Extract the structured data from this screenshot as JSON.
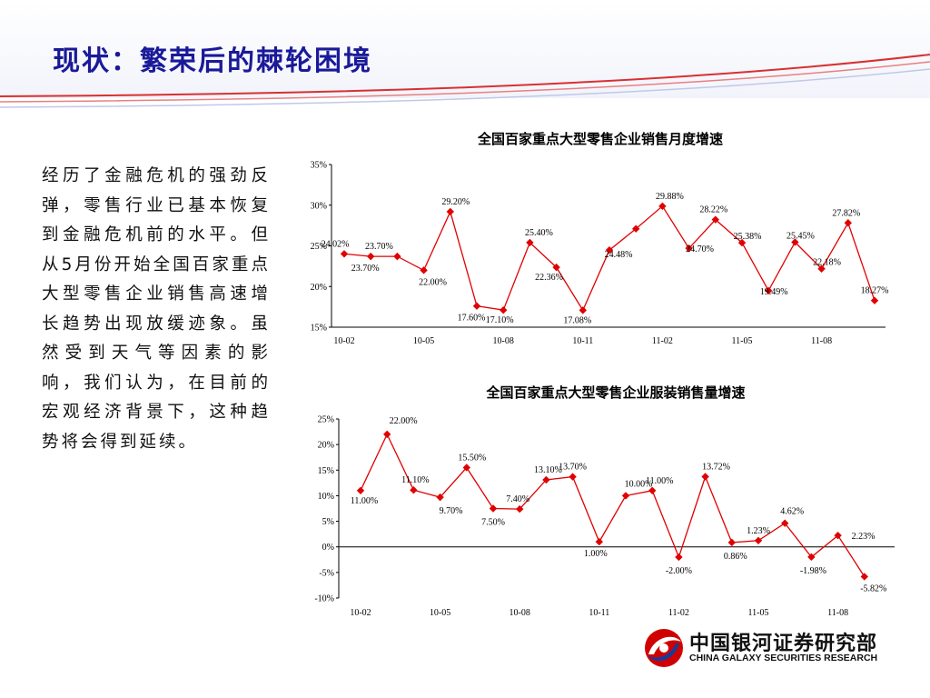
{
  "slide": {
    "title": "现状：繁荣后的棘轮困境",
    "body_text": "经历了金融危机的强劲反弹，零售行业已基本恢复到金融危机前的水平。但从5月份开始全国百家重点大型零售企业销售高速增长趋势出现放缓迹象。虽然受到天气等因素的影响，我们认为，在目前的宏观经济背景下，这种趋势将会得到延续。"
  },
  "logo": {
    "name_cn": "中国银河证券研究部",
    "name_en": "CHINA GALAXY SECURITIES RESEARCH"
  },
  "colors": {
    "series": "#e00000",
    "title": "#1a1a99",
    "header_arc": "#d93030"
  },
  "chart_data": [
    {
      "type": "line",
      "title": "全国百家重点大型零售企业销售月度增速",
      "ylim": [
        15,
        35
      ],
      "yticks": [
        15,
        20,
        25,
        30,
        35
      ],
      "ytick_labels": [
        "15%",
        "20%",
        "25%",
        "30%",
        "35%"
      ],
      "x_tick_labels": [
        "10-02",
        "10-05",
        "10-08",
        "10-11",
        "11-02",
        "11-05",
        "11-08"
      ],
      "series": [
        {
          "values": [
            24.02,
            23.7,
            23.7,
            22.0,
            29.2,
            17.6,
            17.1,
            25.4,
            22.36,
            17.08,
            24.48,
            27.1,
            29.88,
            24.7,
            28.22,
            25.38,
            19.49,
            25.45,
            22.18,
            27.82,
            18.27
          ],
          "labels": [
            "24.02%",
            "23.70%",
            "23.70%",
            "22.00%",
            "29.20%",
            "17.60%",
            "17.10%",
            "25.40%",
            "22.36%",
            "17.08%",
            "24.48%",
            "",
            "29.88%",
            "24.70%",
            "28.22%",
            "25.38%",
            "19.49%",
            "25.45%",
            "22.18%",
            "27.82%",
            "18.27%"
          ]
        }
      ]
    },
    {
      "type": "line",
      "title": "全国百家重点大型零售企业服装销售量增速",
      "ylim": [
        -10,
        25
      ],
      "yticks": [
        -10,
        -5,
        0,
        5,
        10,
        15,
        20,
        25
      ],
      "ytick_labels": [
        "-10%",
        "-5%",
        "0%",
        "5%",
        "10%",
        "15%",
        "20%",
        "25%"
      ],
      "x_tick_labels": [
        "10-02",
        "10-05",
        "10-08",
        "10-11",
        "11-02",
        "11-05",
        "11-08"
      ],
      "series": [
        {
          "values": [
            11.0,
            22.0,
            11.1,
            9.7,
            15.5,
            7.5,
            7.4,
            13.1,
            13.7,
            1.0,
            10.0,
            11.0,
            -2.0,
            13.72,
            0.86,
            1.23,
            4.62,
            -1.98,
            2.23,
            -5.82
          ],
          "labels": [
            "11.00%",
            "22.00%",
            "11.10%",
            "9.70%",
            "15.50%",
            "7.50%",
            "7.40%",
            "13.10%",
            "13.70%",
            "1.00%",
            "10.00%",
            "11.00%",
            "-2.00%",
            "13.72%",
            "0.86%",
            "1.23%",
            "4.62%",
            "-1.98%",
            "2.23%",
            "-5.82%"
          ]
        }
      ]
    }
  ]
}
